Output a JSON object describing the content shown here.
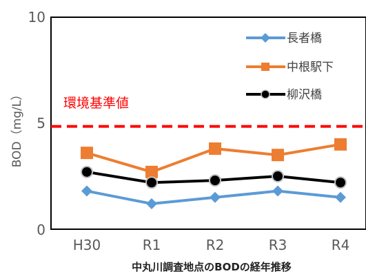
{
  "chart_data": {
    "type": "line",
    "categories": [
      "H30",
      "R1",
      "R2",
      "R3",
      "R4"
    ],
    "ylabel": "BOD（mg/L）",
    "ylim": [
      0,
      10
    ],
    "yticks": [
      "0",
      "5",
      "10"
    ],
    "series": [
      {
        "name": "長者橋",
        "values": [
          1.8,
          1.2,
          1.5,
          1.8,
          1.5
        ],
        "color": "#5b9bd5",
        "marker": "diamond"
      },
      {
        "name": "中根駅下",
        "values": [
          3.6,
          2.7,
          3.8,
          3.5,
          4.0
        ],
        "color": "#ed7d31",
        "marker": "square"
      },
      {
        "name": "柳沢橋",
        "values": [
          2.7,
          2.2,
          2.3,
          2.5,
          2.2
        ],
        "color": "#000000",
        "marker": "circle"
      }
    ],
    "reference_line": {
      "label": "環境基準値",
      "value": 5,
      "color": "#ff0000",
      "style": "dashed"
    },
    "caption": "中丸川調査地点のBODの経年推移",
    "legend_position": "top-right",
    "grid": false
  }
}
